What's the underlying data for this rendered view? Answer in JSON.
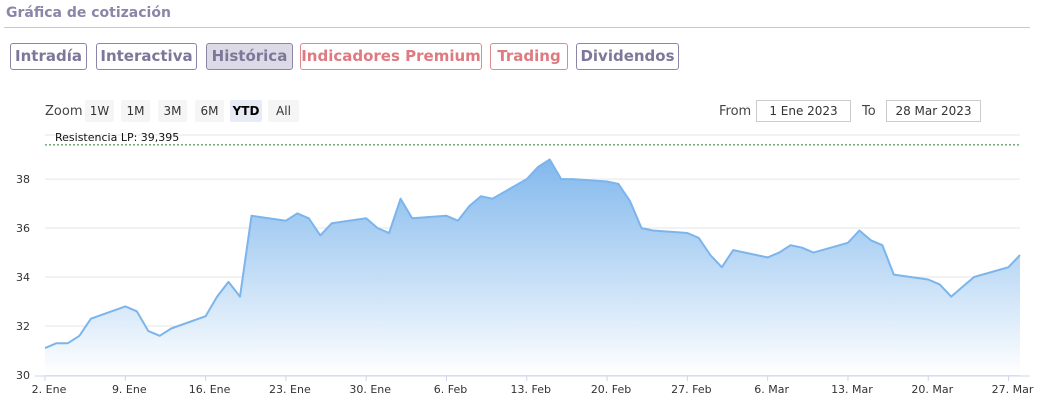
{
  "header": {
    "title": "Gráfica de cotización"
  },
  "tabs": [
    {
      "label": "Intradía",
      "active": false,
      "premium": false
    },
    {
      "label": "Interactiva",
      "active": false,
      "premium": false
    },
    {
      "label": "Histórica",
      "active": true,
      "premium": false
    },
    {
      "label": "Indicadores Premium",
      "active": false,
      "premium": true
    },
    {
      "label": "Trading",
      "active": false,
      "premium": true
    },
    {
      "label": "Dividendos",
      "active": false,
      "premium": false
    }
  ],
  "zoom": {
    "label": "Zoom",
    "options": [
      "1W",
      "1M",
      "3M",
      "6M",
      "YTD",
      "All"
    ],
    "selected": "YTD"
  },
  "range": {
    "from_label": "From",
    "from_value": "1 Ene 2023",
    "to_label": "To",
    "to_value": "28 Mar 2023"
  },
  "colors": {
    "line": "#7cb5ec",
    "fill_top": "#7cb5ec",
    "fill_bottom": "#ffffff",
    "resistance": "#2e7d32",
    "grid": "#e6e6e6"
  },
  "chart_data": {
    "type": "area",
    "ylim": [
      30,
      39.8
    ],
    "yticks": [
      30,
      32,
      34,
      36,
      38
    ],
    "xticks": [
      {
        "label": "2. Ene",
        "x": 0
      },
      {
        "label": "9. Ene",
        "x": 7
      },
      {
        "label": "16. Ene",
        "x": 14
      },
      {
        "label": "23. Ene",
        "x": 21
      },
      {
        "label": "30. Ene",
        "x": 28
      },
      {
        "label": "6. Feb",
        "x": 35
      },
      {
        "label": "13. Feb",
        "x": 42
      },
      {
        "label": "20. Feb",
        "x": 49
      },
      {
        "label": "27. Feb",
        "x": 56
      },
      {
        "label": "6. Mar",
        "x": 63
      },
      {
        "label": "13. Mar",
        "x": 70
      },
      {
        "label": "20. Mar",
        "x": 77
      },
      {
        "label": "27. Mar",
        "x": 84
      }
    ],
    "xlim": [
      0,
      85
    ],
    "resistance": {
      "label": "Resistencia LP: 39,395",
      "value": 39.395
    },
    "series": [
      {
        "x": [
          0,
          1,
          2,
          3,
          4,
          7,
          8,
          9,
          10,
          11,
          14,
          15,
          16,
          17,
          18,
          21,
          22,
          23,
          24,
          25,
          28,
          29,
          30,
          31,
          32,
          35,
          36,
          37,
          38,
          39,
          42,
          43,
          44,
          45,
          46,
          49,
          50,
          51,
          52,
          53,
          56,
          57,
          58,
          59,
          60,
          63,
          64,
          65,
          66,
          67,
          70,
          71,
          72,
          73,
          74,
          77,
          78,
          79,
          80,
          81,
          84,
          85
        ],
        "values": [
          31.1,
          31.3,
          31.3,
          31.6,
          32.3,
          32.8,
          32.6,
          31.8,
          31.6,
          31.9,
          32.4,
          33.2,
          33.8,
          33.2,
          36.5,
          36.3,
          36.6,
          36.4,
          35.7,
          36.2,
          36.4,
          36.0,
          35.8,
          37.2,
          36.4,
          36.5,
          36.3,
          36.9,
          37.3,
          37.2,
          38.0,
          38.5,
          38.8,
          38.0,
          38.0,
          37.9,
          37.8,
          37.1,
          36.0,
          35.9,
          35.8,
          35.6,
          34.9,
          34.4,
          35.1,
          34.8,
          35.0,
          35.3,
          35.2,
          35.0,
          35.4,
          35.9,
          35.5,
          35.3,
          34.1,
          33.9,
          33.7,
          33.2,
          33.6,
          34.0,
          34.4,
          34.9
        ]
      }
    ]
  }
}
